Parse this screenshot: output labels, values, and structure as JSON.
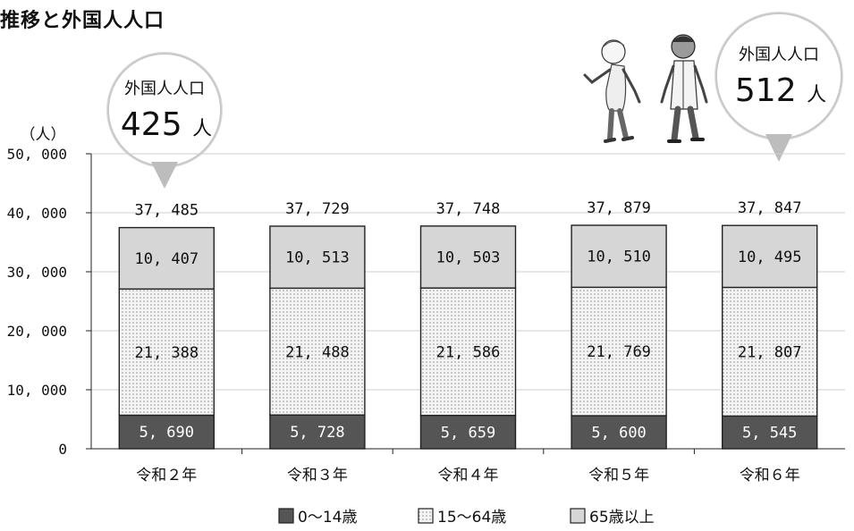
{
  "title": "推移と外国人人口",
  "colors": {
    "under15": "#555555",
    "age15to64_bg": "#f4f4f4",
    "age15to64_dot": "#8a8a8a",
    "over65": "#d6d6d6",
    "bar_stroke": "#222222",
    "grid": "#cfcfcf"
  },
  "callouts": [
    {
      "label": "外国人人口",
      "value": "425",
      "unit": "人",
      "category": "令和２年"
    },
    {
      "label": "外国人人口",
      "value": "512",
      "unit": "人",
      "category": "令和６年"
    }
  ],
  "chart_data": {
    "type": "bar",
    "stacked": true,
    "ylabel": "（人）",
    "ylim": [
      0,
      50000
    ],
    "yticks": [
      "0",
      "10, 000",
      "20, 000",
      "30, 000",
      "40, 000",
      "50, 000"
    ],
    "categories": [
      "令和２年",
      "令和３年",
      "令和４年",
      "令和５年",
      "令和６年"
    ],
    "series": [
      {
        "name": "0～14歳",
        "values": [
          5690,
          5728,
          5659,
          5600,
          5545
        ],
        "labels": [
          "5, 690",
          "5, 728",
          "5, 659",
          "5, 600",
          "5, 545"
        ]
      },
      {
        "name": "15～64歳",
        "values": [
          21388,
          21488,
          21586,
          21769,
          21807
        ],
        "labels": [
          "21, 388",
          "21, 488",
          "21, 586",
          "21, 769",
          "21, 807"
        ]
      },
      {
        "name": "65歳以上",
        "values": [
          10407,
          10513,
          10503,
          10510,
          10495
        ],
        "labels": [
          "10, 407",
          "10, 513",
          "10, 503",
          "10, 510",
          "10, 495"
        ]
      }
    ],
    "totals": [
      37485,
      37729,
      37748,
      37879,
      37847
    ],
    "total_labels": [
      "37, 485",
      "37, 729",
      "37, 748",
      "37, 879",
      "37, 847"
    ],
    "grid": true,
    "legend_position": "bottom"
  }
}
